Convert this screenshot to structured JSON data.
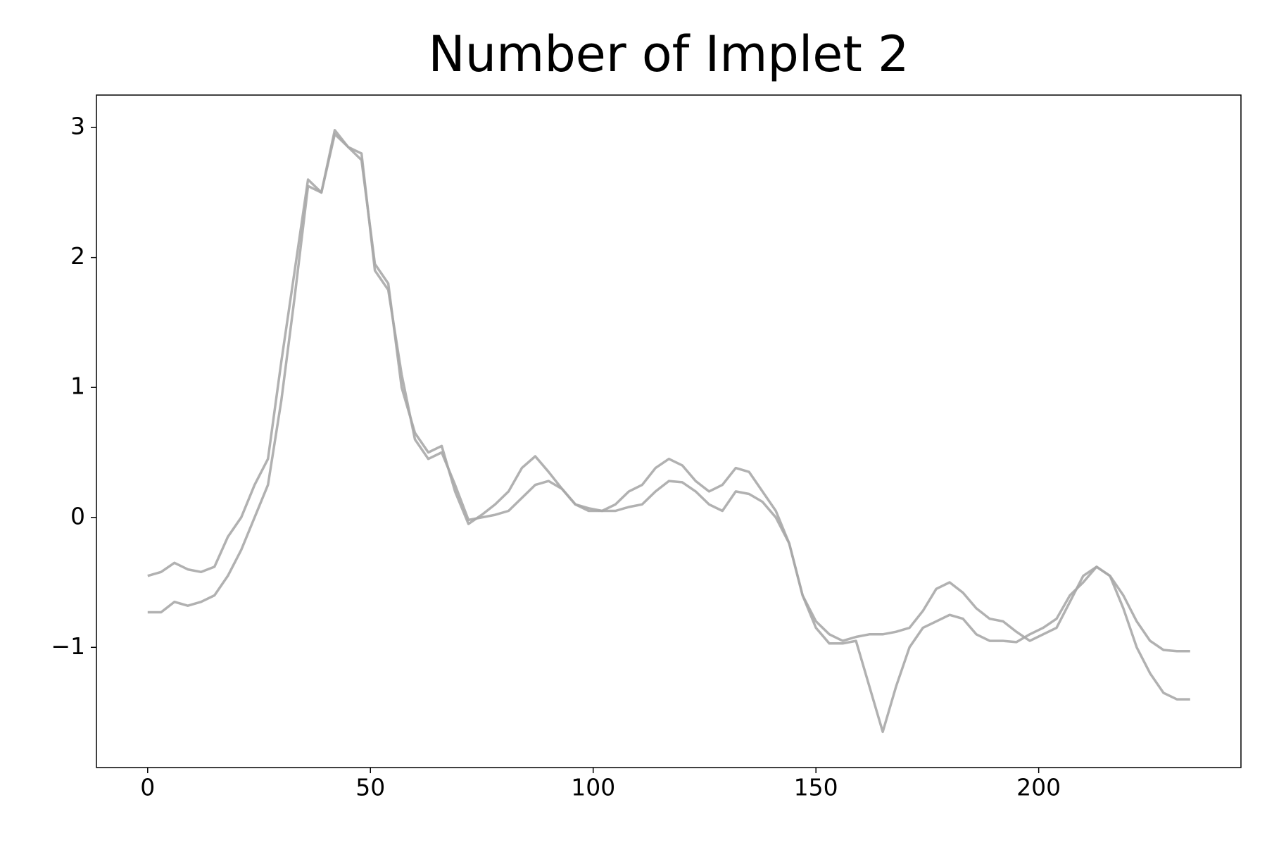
{
  "chart_data": {
    "type": "line",
    "title": "Number of Implet 2",
    "x": [
      0,
      3,
      6,
      9,
      12,
      15,
      18,
      21,
      24,
      27,
      30,
      33,
      36,
      39,
      42,
      45,
      48,
      51,
      54,
      57,
      60,
      63,
      66,
      69,
      72,
      75,
      78,
      81,
      84,
      87,
      90,
      93,
      96,
      99,
      102,
      105,
      108,
      111,
      114,
      117,
      120,
      123,
      126,
      129,
      132,
      135,
      138,
      141,
      144,
      147,
      150,
      153,
      156,
      159,
      162,
      165,
      168,
      171,
      174,
      177,
      180,
      183,
      186,
      189,
      192,
      195,
      198,
      201,
      204,
      207,
      210,
      213,
      216,
      219,
      222,
      225,
      228,
      231,
      234
    ],
    "series": [
      {
        "color": "#a9a9a9",
        "values": [
          -0.45,
          -0.42,
          -0.35,
          -0.4,
          -0.42,
          -0.38,
          -0.15,
          0.0,
          0.25,
          0.45,
          1.2,
          1.9,
          2.6,
          2.5,
          2.95,
          2.85,
          2.75,
          1.95,
          1.8,
          1.0,
          0.65,
          0.5,
          0.55,
          0.2,
          -0.05,
          0.02,
          0.1,
          0.2,
          0.38,
          0.47,
          0.35,
          0.22,
          0.1,
          0.07,
          0.05,
          0.1,
          0.2,
          0.25,
          0.38,
          0.45,
          0.4,
          0.28,
          0.2,
          0.25,
          0.38,
          0.35,
          0.2,
          0.05,
          -0.2,
          -0.6,
          -0.8,
          -0.9,
          -0.95,
          -0.92,
          -0.9,
          -0.9,
          -0.88,
          -0.85,
          -0.72,
          -0.55,
          -0.5,
          -0.58,
          -0.7,
          -0.78,
          -0.8,
          -0.88,
          -0.95,
          -0.9,
          -0.85,
          -0.65,
          -0.45,
          -0.38,
          -0.45,
          -0.6,
          -0.8,
          -0.95,
          -1.02,
          -1.03,
          -1.03
        ]
      },
      {
        "color": "#a9a9a9",
        "values": [
          -0.73,
          -0.73,
          -0.65,
          -0.68,
          -0.65,
          -0.6,
          -0.45,
          -0.25,
          0.0,
          0.25,
          0.9,
          1.7,
          2.55,
          2.5,
          2.98,
          2.85,
          2.8,
          1.9,
          1.75,
          1.1,
          0.6,
          0.45,
          0.5,
          0.25,
          -0.02,
          0.0,
          0.02,
          0.05,
          0.15,
          0.25,
          0.28,
          0.22,
          0.1,
          0.05,
          0.05,
          0.05,
          0.08,
          0.1,
          0.2,
          0.28,
          0.27,
          0.2,
          0.1,
          0.05,
          0.2,
          0.18,
          0.12,
          0.0,
          -0.2,
          -0.6,
          -0.85,
          -0.97,
          -0.97,
          -0.95,
          -1.3,
          -1.65,
          -1.3,
          -1.0,
          -0.85,
          -0.8,
          -0.75,
          -0.78,
          -0.9,
          -0.95,
          -0.95,
          -0.96,
          -0.9,
          -0.85,
          -0.78,
          -0.6,
          -0.5,
          -0.38,
          -0.45,
          -0.7,
          -1.0,
          -1.2,
          -1.35,
          -1.4,
          -1.4
        ]
      }
    ],
    "xlim": [
      -11.5,
      245.4
    ],
    "ylim": [
      -1.925,
      3.25
    ],
    "xticks": [
      0,
      50,
      100,
      150,
      200
    ],
    "yticks": [
      {
        "value": -1,
        "label": "−1"
      },
      0,
      1,
      2,
      3
    ]
  }
}
